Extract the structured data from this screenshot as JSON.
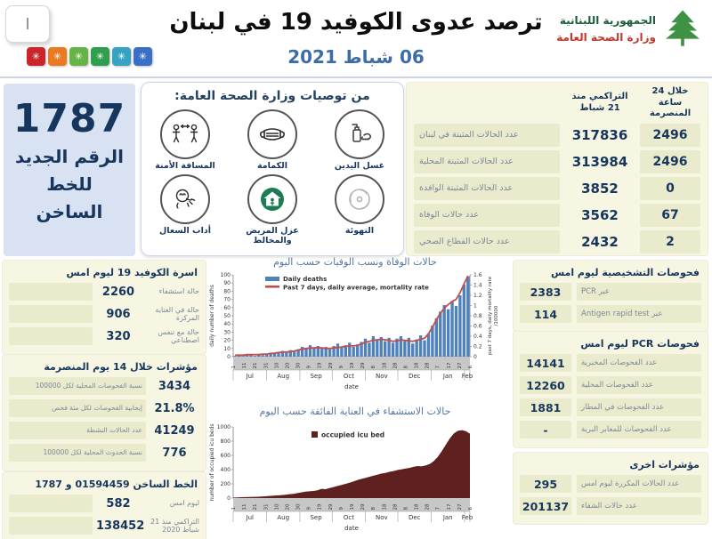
{
  "header": {
    "page_indicator": "I",
    "virus_glyph": "✳",
    "virus_squares": [
      {
        "color": "#c9252b"
      },
      {
        "color": "#e87a23"
      },
      {
        "color": "#66b447"
      },
      {
        "color": "#2f9e4e"
      },
      {
        "color": "#38a2c4"
      },
      {
        "color": "#3b6fc6"
      }
    ],
    "title": "ترصد عدوى الكوفيد 19 في لبنان",
    "date": "06 شباط 2021",
    "logo": {
      "line1": "الجمهورية اللبنانية",
      "line2": "وزارة الصحة العامة",
      "icon": "cedar-tree-icon"
    }
  },
  "hotline_panel": {
    "number": "1787",
    "label": "الرقم الجديد للخط الساخن"
  },
  "recommendations": {
    "title": "من توصيات وزارة الصحة العامة:",
    "items": [
      {
        "icon": "hand-washing-icon",
        "label": "غسل اليدين"
      },
      {
        "icon": "face-mask-icon",
        "label": "الكمامة"
      },
      {
        "icon": "safe-distance-icon",
        "label": "المسافة الأمنة"
      },
      {
        "icon": "ventilation-icon",
        "label": "التهوئة"
      },
      {
        "icon": "isolation-icon",
        "label": "عزل المريض والمخالط"
      },
      {
        "icon": "cough-etiquette-icon",
        "label": "أداب السعال"
      }
    ]
  },
  "main_table": {
    "col_cumulative": "التراكمي منذ 21 شباط",
    "col_24h": "خلال 24 ساعة المنصرمة",
    "rows": [
      {
        "label": "عدد الحالات المثبتة في لبنان",
        "cumulative": "317836",
        "last24h": "2496"
      },
      {
        "label": "عدد الحالات المثبتة المحلية",
        "cumulative": "313984",
        "last24h": "2496"
      },
      {
        "label": "عدد الحالات المثبتة الوافدة",
        "cumulative": "3852",
        "last24h": "0"
      },
      {
        "label": "عدد حالات الوفاة",
        "cumulative": "3562",
        "last24h": "67"
      },
      {
        "label": "عدد حالات القطاع الصحي",
        "cumulative": "2432",
        "last24h": "2"
      }
    ]
  },
  "right_sections": [
    {
      "title": "فحوصات التشخيصية ليوم امس",
      "rows": [
        {
          "value": "2383",
          "label": "عبر PCR"
        },
        {
          "value": "114",
          "label": "عبر Antigen rapid test"
        }
      ]
    },
    {
      "title": "فحوصات PCR ليوم امس",
      "rows": [
        {
          "value": "14141",
          "label": "عدد الفحوصات المخبرية"
        },
        {
          "value": "12260",
          "label": "عدد الفحوصات المحلية"
        },
        {
          "value": "1881",
          "label": "عدد الفحوصات في المطار"
        },
        {
          "value": "-",
          "label": "عدد الفحوصات للمعابر البرية"
        }
      ]
    },
    {
      "title": "مؤشرات اخرى",
      "rows": [
        {
          "value": "295",
          "label": "عدد الحالات المكررة ليوم امس"
        },
        {
          "value": "201137",
          "label": "عدد حالات الشفاء"
        }
      ]
    }
  ],
  "left_sections": [
    {
      "title": "اسرة الكوفيد 19 ليوم امس",
      "label_position": "right",
      "rows": [
        {
          "value": "2260",
          "label": "حالة استشفاء"
        },
        {
          "value": "906",
          "label": "حالة في العناية المركزة"
        },
        {
          "value": "320",
          "label": "حالة مع تنفس اصطناعي"
        }
      ]
    },
    {
      "title": "مؤشرات خلال 14 يوم المنصرمة",
      "label_position": "bar",
      "rows": [
        {
          "value": "3434",
          "label": "نسبة الفحوصات المحلية لكل 100000"
        },
        {
          "value": "21.8%",
          "label": "إيجابية الفحوصات لكل مئة فحص"
        },
        {
          "value": "41249",
          "label": "عدد الحالات النشطة"
        },
        {
          "value": "776",
          "label": "نسبة الحدوث المحلية لكل 100000"
        }
      ]
    },
    {
      "title": "الخط الساخن 01594459 و 1787",
      "label_position": "right",
      "rows": [
        {
          "value": "582",
          "label": "ليوم امس"
        },
        {
          "value": "138452",
          "label": "التراكمي منذ 21 شباط 2020"
        }
      ]
    }
  ],
  "chart_data": [
    {
      "type": "bar",
      "title": "حالات الوفاة ونسب الوفيات حسب اليوم",
      "xlabel": "date",
      "ylabel_left": "daily number of deaths",
      "ylabel_right": "past 7 days, daily mortality rate /100000",
      "ylim_left": [
        0,
        100
      ],
      "ylim_right": [
        0,
        1.6
      ],
      "ytick_step_left": 10,
      "ytick_step_right": 0.2,
      "month_labels": [
        "Jul",
        "Aug",
        "Sep",
        "Oct",
        "Nov",
        "Dec",
        "Jan",
        "Feb"
      ],
      "month_days": [
        31,
        31,
        30,
        31,
        30,
        31,
        31,
        6
      ],
      "day_ticks": [
        "1",
        "11",
        "21",
        "31",
        "10",
        "20",
        "30",
        "9",
        "19",
        "29",
        "9",
        "19",
        "29",
        "8",
        "18",
        "28",
        "8",
        "18",
        "28",
        "7",
        "17",
        "27",
        "6"
      ],
      "legend_position": "top-left",
      "grid": false,
      "series": [
        {
          "name": "Daily deaths",
          "type": "bar",
          "axis": "left",
          "color": "#4f81bd",
          "values": [
            1,
            2,
            1,
            3,
            2,
            1,
            3,
            2,
            3,
            5,
            4,
            6,
            7,
            5,
            8,
            6,
            9,
            12,
            10,
            14,
            11,
            13,
            10,
            12,
            9,
            13,
            16,
            11,
            14,
            17,
            12,
            15,
            18,
            22,
            17,
            25,
            20,
            24,
            19,
            23,
            17,
            22,
            25,
            19,
            23,
            16,
            21,
            26,
            20,
            28,
            38,
            47,
            55,
            63,
            58,
            68,
            62,
            75,
            88,
            98
          ]
        },
        {
          "name": "Past 7 days, daily average, mortality rate",
          "type": "line",
          "axis": "right",
          "color": "#c0504d",
          "values": [
            0.03,
            0.03,
            0.03,
            0.04,
            0.04,
            0.04,
            0.04,
            0.05,
            0.05,
            0.06,
            0.07,
            0.08,
            0.09,
            0.09,
            0.1,
            0.11,
            0.13,
            0.15,
            0.16,
            0.17,
            0.17,
            0.18,
            0.17,
            0.16,
            0.16,
            0.17,
            0.18,
            0.19,
            0.2,
            0.21,
            0.21,
            0.22,
            0.25,
            0.28,
            0.3,
            0.32,
            0.33,
            0.34,
            0.33,
            0.32,
            0.3,
            0.31,
            0.33,
            0.32,
            0.31,
            0.3,
            0.32,
            0.34,
            0.36,
            0.45,
            0.58,
            0.72,
            0.85,
            0.95,
            1.02,
            1.08,
            1.12,
            1.25,
            1.42,
            1.58
          ]
        }
      ]
    },
    {
      "type": "area",
      "title": "حالات الاستشفاء في العناية الفائقة حسب اليوم",
      "xlabel": "date",
      "ylabel": "number of occupied icu beds",
      "ylim": [
        0,
        1000
      ],
      "ytick_step": 200,
      "month_labels": [
        "Jul",
        "Aug",
        "Sep",
        "Oct",
        "Nov",
        "Dec",
        "Jan",
        "Feb"
      ],
      "month_days": [
        31,
        31,
        30,
        31,
        30,
        31,
        31,
        6
      ],
      "day_ticks": [
        "1",
        "11",
        "21",
        "31",
        "10",
        "20",
        "30",
        "9",
        "19",
        "29",
        "9",
        "19",
        "29",
        "8",
        "18",
        "28",
        "8",
        "18",
        "28",
        "7",
        "17",
        "27",
        "6"
      ],
      "legend_position": "top-center",
      "grid": false,
      "series": [
        {
          "name": "occupied icu bed",
          "type": "area",
          "color": "#5f2120",
          "values": [
            8,
            10,
            12,
            14,
            15,
            17,
            19,
            22,
            25,
            30,
            34,
            38,
            42,
            48,
            55,
            60,
            70,
            80,
            90,
            95,
            100,
            110,
            130,
            125,
            140,
            155,
            170,
            185,
            200,
            215,
            235,
            255,
            270,
            285,
            300,
            315,
            330,
            345,
            355,
            370,
            380,
            395,
            405,
            415,
            425,
            440,
            450,
            445,
            460,
            480,
            520,
            580,
            660,
            750,
            840,
            910,
            945,
            955,
            940,
            905
          ]
        }
      ]
    }
  ]
}
